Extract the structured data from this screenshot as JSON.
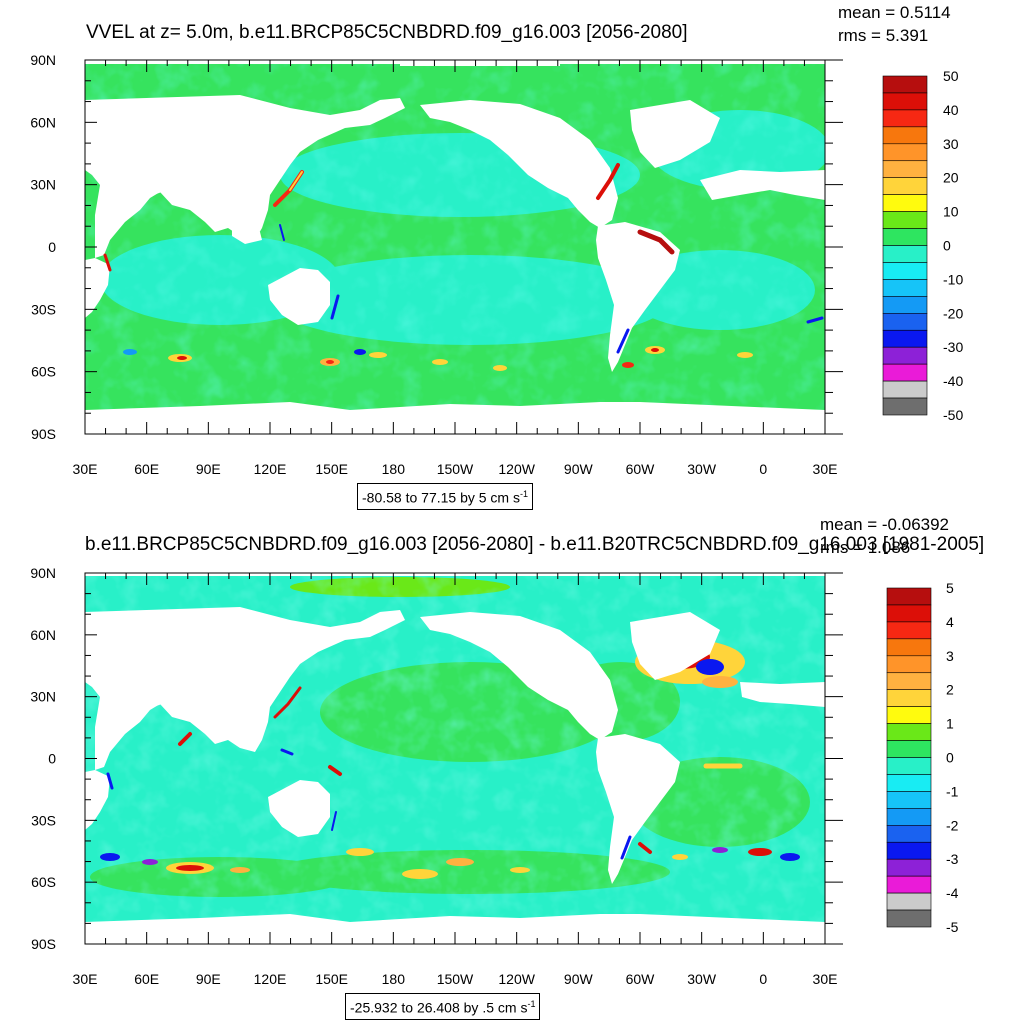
{
  "palette": {
    "colors": [
      "#6e6e6e",
      "#cbcbcb",
      "#ea1bd8",
      "#8d21d7",
      "#0a18f0",
      "#1a62f0",
      "#149af5",
      "#16c4f8",
      "#18ecf3",
      "#28f0c8",
      "#2ee560",
      "#6ae818",
      "#fffb0e",
      "#ffd43a",
      "#ffb140",
      "#ff9429",
      "#f7770d",
      "#f62813",
      "#dc0f08",
      "#b60e0e"
    ],
    "land": "#ffffff",
    "ocean_base": "#36e35e",
    "frame": "#000000"
  },
  "chart_data": [
    {
      "type": "heatmap",
      "title": "VVEL at z=   5.0m, b.e11.BRCP85C5CNBDRD.f09_g16.003 [2056-2080]",
      "stats": [
        "mean = 0.5114",
        "rms = 5.391"
      ],
      "range_label": "-80.58 to 77.15 by 5 cm s",
      "range_unit_sup": "-1",
      "x_tick_labels": [
        "30E",
        "60E",
        "90E",
        "120E",
        "150E",
        "180",
        "150W",
        "120W",
        "90W",
        "60W",
        "30W",
        "0",
        "30E"
      ],
      "y_tick_labels": [
        "90N",
        "60N",
        "30N",
        "0",
        "30S",
        "60S",
        "90S"
      ],
      "colorbar_levels": [
        "50",
        "40",
        "30",
        "20",
        "10",
        "0",
        "-10",
        "-20",
        "-30",
        "-40",
        "-50"
      ],
      "xlim": [
        30,
        390
      ],
      "ylim": [
        -90,
        90
      ],
      "grid": false
    },
    {
      "type": "heatmap",
      "title": "b.e11.BRCP85C5CNBDRD.f09_g16.003 [2056-2080] - b.e11.B20TRC5CNBDRD.f09_g16.003 [1981-2005]",
      "stats": [
        "mean = -0.06392",
        "rms = 1.086"
      ],
      "range_label": "-25.932 to 26.408 by .5 cm s",
      "range_unit_sup": "-1",
      "x_tick_labels": [
        "30E",
        "60E",
        "90E",
        "120E",
        "150E",
        "180",
        "150W",
        "120W",
        "90W",
        "60W",
        "30W",
        "0",
        "30E"
      ],
      "y_tick_labels": [
        "90N",
        "60N",
        "30N",
        "0",
        "30S",
        "60S",
        "90S"
      ],
      "colorbar_levels": [
        "5",
        "4",
        "3",
        "2",
        "1",
        "0",
        "-1",
        "-2",
        "-3",
        "-4",
        "-5"
      ],
      "xlim": [
        30,
        390
      ],
      "ylim": [
        -90,
        90
      ],
      "grid": false
    }
  ]
}
